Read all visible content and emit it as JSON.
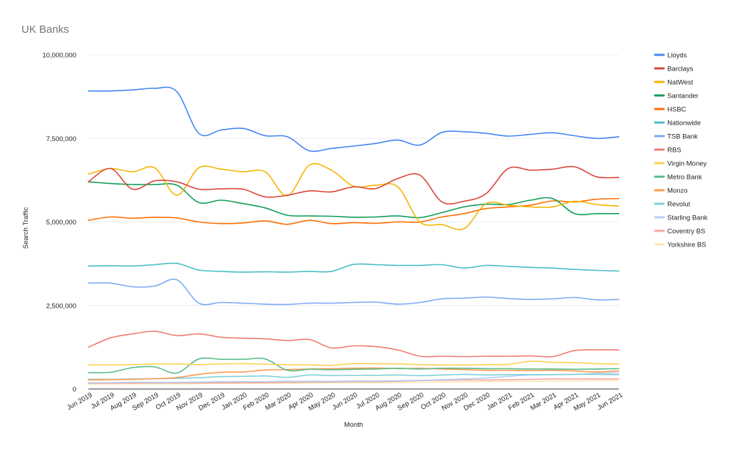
{
  "chart_data": {
    "type": "line",
    "title": "UK Banks",
    "xlabel": "Month",
    "ylabel": "Search Traffic",
    "ylim": [
      0,
      10000000
    ],
    "yticks": [
      0,
      2500000,
      5000000,
      7500000,
      10000000
    ],
    "ytick_labels": [
      "0",
      "2,500,000",
      "5,000,000",
      "7,500,000",
      "10,000,000"
    ],
    "grid": true,
    "legend_position": "right",
    "categories": [
      "Jun 2019",
      "Jul 2019",
      "Aug 2019",
      "Sep 2019",
      "Oct 2019",
      "Nov 2019",
      "Dec 2019",
      "Jan 2020",
      "Feb 2020",
      "Mar 2020",
      "Apr 2020",
      "May 2020",
      "Jun 2020",
      "Jul 2020",
      "Aug 2020",
      "Sep 2020",
      "Oct 2020",
      "Nov 2020",
      "Dec 2020",
      "Jan 2021",
      "Feb 2021",
      "Mar 2021",
      "Apr 2021",
      "May 2021",
      "Jun 2021"
    ],
    "series": [
      {
        "name": "Lloyds",
        "color": "#4285f4",
        "values": [
          8920000,
          8920000,
          8950000,
          9000000,
          8900000,
          7650000,
          7750000,
          7800000,
          7580000,
          7550000,
          7130000,
          7200000,
          7270000,
          7350000,
          7450000,
          7300000,
          7680000,
          7700000,
          7650000,
          7570000,
          7620000,
          7670000,
          7580000,
          7500000,
          7550000
        ]
      },
      {
        "name": "Barclays",
        "color": "#db4437",
        "values": [
          6200000,
          6600000,
          5980000,
          6230000,
          6200000,
          5980000,
          5990000,
          5980000,
          5750000,
          5800000,
          5930000,
          5900000,
          6050000,
          6000000,
          6300000,
          6400000,
          5600000,
          5620000,
          5850000,
          6600000,
          6550000,
          6580000,
          6650000,
          6350000,
          6330000
        ]
      },
      {
        "name": "NatWest",
        "color": "#f4b400",
        "values": [
          6430000,
          6600000,
          6500000,
          6620000,
          5800000,
          6620000,
          6580000,
          6500000,
          6500000,
          5780000,
          6700000,
          6550000,
          6070000,
          6100000,
          6050000,
          5000000,
          4920000,
          4800000,
          5550000,
          5500000,
          5450000,
          5450000,
          5620000,
          5520000,
          5470000
        ]
      },
      {
        "name": "Santander",
        "color": "#0f9d58",
        "values": [
          6200000,
          6150000,
          6120000,
          6120000,
          6100000,
          5580000,
          5650000,
          5550000,
          5420000,
          5200000,
          5180000,
          5170000,
          5140000,
          5150000,
          5180000,
          5130000,
          5280000,
          5450000,
          5530000,
          5520000,
          5650000,
          5700000,
          5250000,
          5250000,
          5250000
        ]
      },
      {
        "name": "HSBC",
        "color": "#ff6d00",
        "values": [
          5050000,
          5150000,
          5110000,
          5140000,
          5120000,
          5000000,
          4950000,
          4970000,
          5030000,
          4930000,
          5050000,
          4950000,
          4980000,
          4960000,
          5000000,
          5000000,
          5150000,
          5250000,
          5400000,
          5450000,
          5500000,
          5630000,
          5600000,
          5680000,
          5700000
        ]
      },
      {
        "name": "Nationwide",
        "color": "#46bdc6",
        "values": [
          3680000,
          3690000,
          3680000,
          3720000,
          3760000,
          3560000,
          3520000,
          3500000,
          3510000,
          3500000,
          3520000,
          3520000,
          3730000,
          3720000,
          3700000,
          3700000,
          3720000,
          3620000,
          3700000,
          3670000,
          3640000,
          3620000,
          3580000,
          3550000,
          3530000
        ]
      },
      {
        "name": "TSB Bank",
        "color": "#7baaf7",
        "values": [
          3170000,
          3170000,
          3060000,
          3080000,
          3270000,
          2570000,
          2590000,
          2570000,
          2540000,
          2530000,
          2570000,
          2570000,
          2590000,
          2600000,
          2540000,
          2590000,
          2700000,
          2720000,
          2750000,
          2710000,
          2680000,
          2700000,
          2740000,
          2670000,
          2680000
        ]
      },
      {
        "name": "RBS",
        "color": "#f07b72",
        "values": [
          1250000,
          1530000,
          1650000,
          1730000,
          1600000,
          1650000,
          1550000,
          1520000,
          1500000,
          1450000,
          1480000,
          1230000,
          1290000,
          1270000,
          1170000,
          980000,
          980000,
          970000,
          980000,
          980000,
          990000,
          970000,
          1150000,
          1170000,
          1170000
        ]
      },
      {
        "name": "Virgin Money",
        "color": "#fcd04f",
        "values": [
          720000,
          720000,
          730000,
          750000,
          750000,
          730000,
          750000,
          760000,
          740000,
          730000,
          720000,
          710000,
          760000,
          760000,
          750000,
          730000,
          720000,
          720000,
          730000,
          740000,
          830000,
          800000,
          790000,
          760000,
          750000
        ]
      },
      {
        "name": "Metro Bank",
        "color": "#57bb8a",
        "values": [
          490000,
          500000,
          640000,
          660000,
          480000,
          900000,
          890000,
          890000,
          900000,
          560000,
          590000,
          580000,
          590000,
          600000,
          620000,
          600000,
          620000,
          620000,
          610000,
          610000,
          600000,
          600000,
          590000,
          600000,
          610000
        ]
      },
      {
        "name": "Monzo",
        "color": "#ff994d",
        "values": [
          270000,
          280000,
          290000,
          310000,
          340000,
          440000,
          500000,
          510000,
          570000,
          580000,
          600000,
          610000,
          620000,
          630000,
          610000,
          620000,
          600000,
          580000,
          560000,
          560000,
          550000,
          560000,
          540000,
          510000,
          540000
        ]
      },
      {
        "name": "Revolut",
        "color": "#7ed1d7",
        "values": [
          290000,
          290000,
          300000,
          310000,
          320000,
          340000,
          370000,
          380000,
          390000,
          350000,
          420000,
          400000,
          410000,
          410000,
          420000,
          400000,
          420000,
          440000,
          420000,
          430000,
          430000,
          430000,
          440000,
          440000,
          430000
        ]
      },
      {
        "name": "Starling Bank",
        "color": "#b3cefb",
        "values": [
          190000,
          190000,
          200000,
          200000,
          200000,
          210000,
          220000,
          220000,
          220000,
          230000,
          230000,
          230000,
          240000,
          240000,
          250000,
          260000,
          280000,
          300000,
          330000,
          380000,
          420000,
          430000,
          440000,
          470000,
          480000
        ]
      },
      {
        "name": "Coventry BS",
        "color": "#f7a7a0",
        "values": [
          170000,
          175000,
          175000,
          180000,
          180000,
          180000,
          185000,
          190000,
          190000,
          200000,
          210000,
          210000,
          220000,
          220000,
          230000,
          250000,
          260000,
          270000,
          270000,
          280000,
          290000,
          300000,
          300000,
          300000,
          300000
        ]
      },
      {
        "name": "Yorkshire BS",
        "color": "#fce8b2",
        "values": [
          150000,
          150000,
          155000,
          155000,
          155000,
          160000,
          165000,
          165000,
          170000,
          170000,
          180000,
          185000,
          190000,
          190000,
          195000,
          200000,
          210000,
          215000,
          220000,
          225000,
          230000,
          235000,
          240000,
          250000,
          250000
        ]
      }
    ]
  }
}
